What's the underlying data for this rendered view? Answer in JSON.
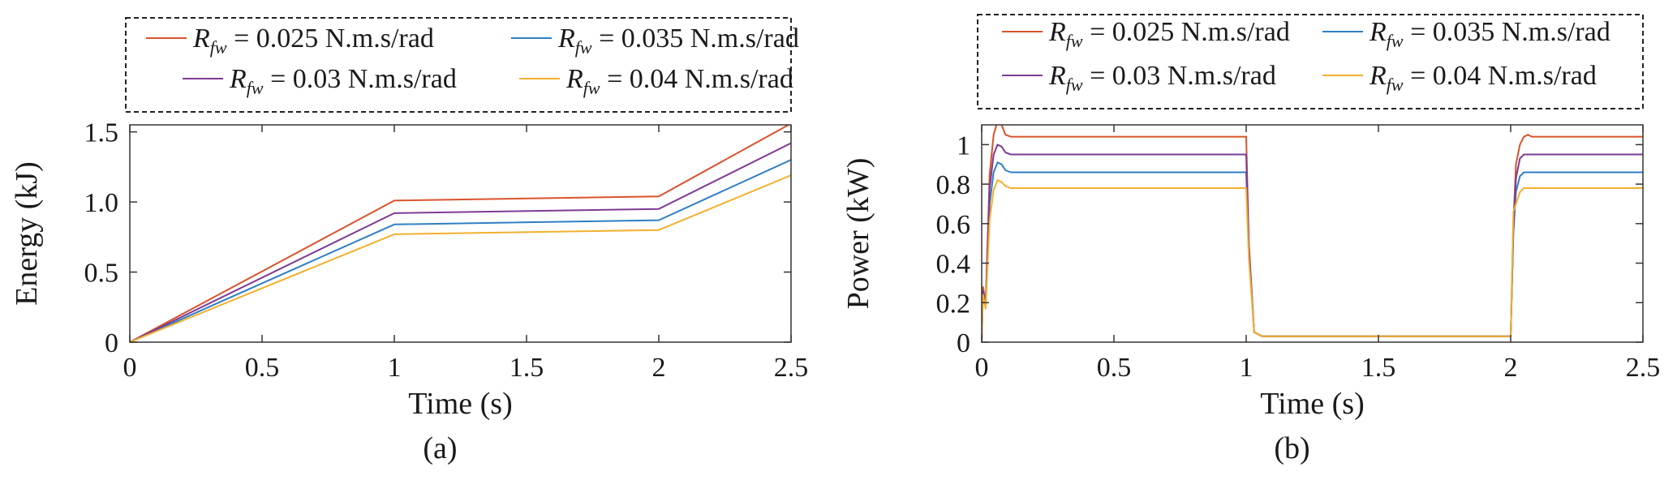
{
  "chart_data": [
    {
      "panel": "(a)",
      "type": "line",
      "xlabel": "Time (s)",
      "ylabel": "Energy (kJ)",
      "xlim": [
        0,
        2.5
      ],
      "ylim": [
        0,
        1.55
      ],
      "xticks": [
        0,
        0.5,
        1,
        1.5,
        2,
        2.5
      ],
      "xtick_labels": [
        "0",
        "0.5",
        "1",
        "1.5",
        "2",
        "2.5"
      ],
      "yticks": [
        0,
        0.5,
        1.0,
        1.5
      ],
      "ytick_labels": [
        "0",
        "0.5",
        "1.0",
        "1.5"
      ],
      "legend": "top, boxed (dashed border)",
      "series": [
        {
          "name": "R_fw = 0.025 N.m.s/rad",
          "sym": "R",
          "sub": "fw",
          "text": " = 0.025 N.m.s/rad",
          "color": "#d9532b",
          "x": [
            0,
            1,
            2,
            2.5
          ],
          "y": [
            0,
            1.01,
            1.04,
            1.56
          ]
        },
        {
          "name": "R_fw = 0.035 N.m.s/rad",
          "sym": "R",
          "sub": "fw",
          "text": " = 0.035 N.m.s/rad",
          "color": "#2e7fc4",
          "x": [
            0,
            1,
            2,
            2.5
          ],
          "y": [
            0,
            0.84,
            0.87,
            1.3
          ]
        },
        {
          "name": "R_fw = 0.03 N.m.s/rad",
          "sym": "R",
          "sub": "fw",
          "text": " = 0.03 N.m.s/rad",
          "color": "#7e3a95",
          "x": [
            0,
            1,
            2,
            2.5
          ],
          "y": [
            0,
            0.92,
            0.95,
            1.42
          ]
        },
        {
          "name": "R_fw = 0.04 N.m.s/rad",
          "sym": "R",
          "sub": "fw",
          "text": " = 0.04 N.m.s/rad",
          "color": "#f2b02e",
          "x": [
            0,
            1,
            2,
            2.5
          ],
          "y": [
            0,
            0.77,
            0.8,
            1.19
          ]
        }
      ]
    },
    {
      "panel": "(b)",
      "type": "line",
      "xlabel": "Time (s)",
      "ylabel": "Power (kW)",
      "xlim": [
        0,
        2.5
      ],
      "ylim": [
        0,
        1.1
      ],
      "xticks": [
        0,
        0.5,
        1,
        1.5,
        2,
        2.5
      ],
      "xtick_labels": [
        "0",
        "0.5",
        "1",
        "1.5",
        "2",
        "2.5"
      ],
      "yticks": [
        0,
        0.2,
        0.4,
        0.6,
        0.8,
        1
      ],
      "ytick_labels": [
        "0",
        "0.2",
        "0.4",
        "0.6",
        "0.8",
        "1"
      ],
      "legend": "top, boxed (dashed border)",
      "series": [
        {
          "name": "R_fw = 0.025 N.m.s/rad",
          "sym": "R",
          "sub": "fw",
          "text": " = 0.025 N.m.s/rad",
          "color": "#d9532b",
          "x": [
            0,
            0.005,
            0.015,
            0.03,
            0.045,
            0.06,
            0.075,
            0.09,
            0.11,
            0.13,
            1.0,
            1.01,
            1.03,
            1.06,
            2.0,
            2.01,
            2.02,
            2.035,
            2.05,
            2.065,
            2.08,
            2.1,
            2.12,
            2.5
          ],
          "y": [
            0,
            0.28,
            0.2,
            0.85,
            1.05,
            1.12,
            1.1,
            1.05,
            1.04,
            1.04,
            1.04,
            0.5,
            0.05,
            0.03,
            0.03,
            0.6,
            0.9,
            1.0,
            1.04,
            1.05,
            1.04,
            1.04,
            1.04,
            1.04
          ]
        },
        {
          "name": "R_fw = 0.035 N.m.s/rad",
          "sym": "R",
          "sub": "fw",
          "text": " = 0.035 N.m.s/rad",
          "color": "#2e7fc4",
          "x": [
            0,
            0.005,
            0.015,
            0.03,
            0.045,
            0.06,
            0.075,
            0.09,
            0.11,
            0.13,
            1.0,
            1.01,
            1.03,
            1.06,
            2.0,
            2.01,
            2.02,
            2.035,
            2.05,
            2.065,
            2.08,
            2.1,
            2.12,
            2.5
          ],
          "y": [
            0,
            0.25,
            0.18,
            0.7,
            0.86,
            0.91,
            0.9,
            0.87,
            0.86,
            0.86,
            0.86,
            0.45,
            0.05,
            0.03,
            0.03,
            0.55,
            0.76,
            0.84,
            0.86,
            0.86,
            0.86,
            0.86,
            0.86,
            0.86
          ]
        },
        {
          "name": "R_fw = 0.03 N.m.s/rad",
          "sym": "R",
          "sub": "fw",
          "text": " = 0.03 N.m.s/rad",
          "color": "#7e3a95",
          "x": [
            0,
            0.005,
            0.015,
            0.03,
            0.045,
            0.06,
            0.075,
            0.09,
            0.11,
            0.13,
            1.0,
            1.01,
            1.03,
            1.06,
            2.0,
            2.01,
            2.02,
            2.035,
            2.05,
            2.065,
            2.08,
            2.1,
            2.12,
            2.5
          ],
          "y": [
            0,
            0.26,
            0.19,
            0.78,
            0.95,
            1.0,
            0.99,
            0.96,
            0.95,
            0.95,
            0.95,
            0.48,
            0.05,
            0.03,
            0.03,
            0.58,
            0.83,
            0.93,
            0.95,
            0.95,
            0.95,
            0.95,
            0.95,
            0.95
          ]
        },
        {
          "name": "R_fw = 0.04 N.m.s/rad",
          "sym": "R",
          "sub": "fw",
          "text": " = 0.04 N.m.s/rad",
          "color": "#f2b02e",
          "x": [
            0,
            0.005,
            0.015,
            0.03,
            0.045,
            0.06,
            0.075,
            0.09,
            0.11,
            0.13,
            1.0,
            1.01,
            1.03,
            1.06,
            2.0,
            2.01,
            2.02,
            2.035,
            2.05,
            2.065,
            2.08,
            2.1,
            2.12,
            2.5
          ],
          "y": [
            0,
            0.24,
            0.17,
            0.62,
            0.77,
            0.82,
            0.81,
            0.79,
            0.78,
            0.78,
            0.78,
            0.42,
            0.05,
            0.03,
            0.03,
            0.66,
            0.7,
            0.76,
            0.78,
            0.78,
            0.78,
            0.78,
            0.78,
            0.78
          ]
        }
      ]
    }
  ]
}
